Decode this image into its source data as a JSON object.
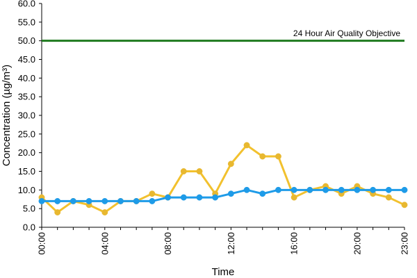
{
  "chart_data": {
    "type": "line",
    "title": "",
    "xlabel": "Time",
    "ylabel": "Concentration (µg/m³)",
    "ylim": [
      0,
      60
    ],
    "yticks": [
      "0.0",
      "5.0",
      "10.0",
      "15.0",
      "20.0",
      "25.0",
      "30.0",
      "35.0",
      "40.0",
      "45.0",
      "50.0",
      "55.0",
      "60.0"
    ],
    "x": [
      0,
      1,
      2,
      3,
      4,
      5,
      6,
      7,
      8,
      9,
      10,
      11,
      12,
      13,
      14,
      15,
      16,
      17,
      18,
      19,
      20,
      21,
      22,
      23
    ],
    "xlim": [
      0,
      23
    ],
    "xticks": [
      {
        "x": 0,
        "label": "00:00"
      },
      {
        "x": 4,
        "label": "04:00"
      },
      {
        "x": 8,
        "label": "08:00"
      },
      {
        "x": 12,
        "label": "12:00"
      },
      {
        "x": 16,
        "label": "16:00"
      },
      {
        "x": 20,
        "label": "20:00"
      },
      {
        "x": 23,
        "label": "23:00"
      }
    ],
    "series": [
      {
        "color": "#f2c12e",
        "marker_color": "#e8b830",
        "values": [
          8,
          4,
          7,
          6,
          4,
          7,
          7,
          9,
          8,
          15,
          15,
          9,
          17,
          22,
          19,
          19,
          8,
          10,
          11,
          9,
          11,
          9,
          8,
          6
        ]
      },
      {
        "color": "#1e9be8",
        "marker_color": "#1e9be8",
        "values": [
          7,
          7,
          7,
          7,
          7,
          7,
          7,
          7,
          8,
          8,
          8,
          8,
          9,
          10,
          9,
          10,
          10,
          10,
          10,
          10,
          10,
          10,
          10,
          10
        ]
      }
    ],
    "reference_line": {
      "value": 50,
      "label": "24 Hour Air Quality Objective",
      "color": "#1f7a1f"
    },
    "grid": false,
    "legend": "none"
  }
}
